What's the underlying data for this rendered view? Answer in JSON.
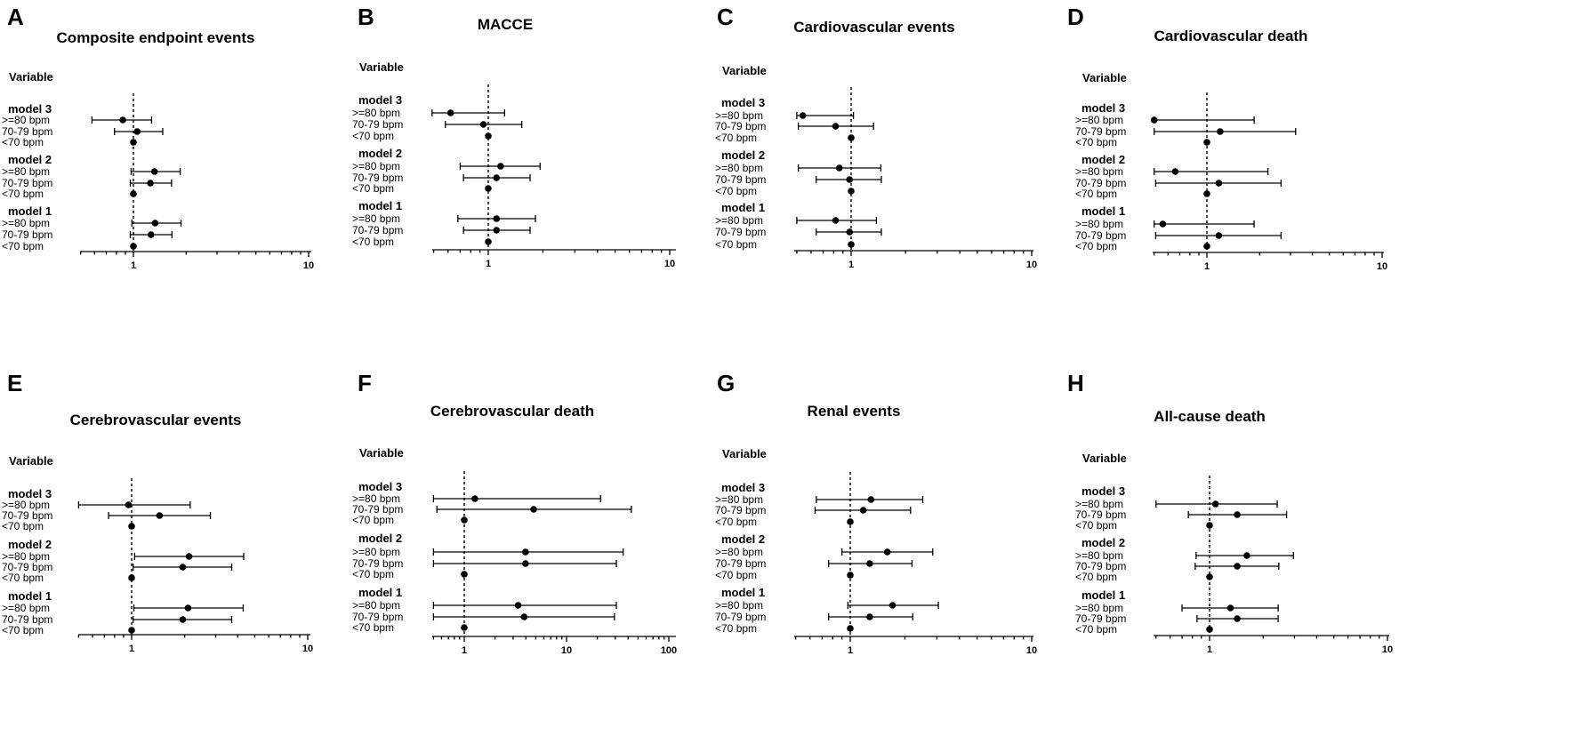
{
  "row_labels": [
    ">=80 bpm",
    "70-79 bpm",
    "<70 bpm"
  ],
  "variable_header": "Variable",
  "chart_data": [
    {
      "type": "forest",
      "letter": "A",
      "title": "Composite endpoint events",
      "x_scale": "log",
      "xlim": [
        0.5,
        10
      ],
      "ticks": [
        {
          "v": 1,
          "label": "1"
        },
        {
          "v": 10,
          "label": "10"
        }
      ],
      "reference": 1,
      "models": [
        {
          "label": "model 3",
          "rows": [
            {
              "est": 0.87,
              "lo": 0.58,
              "hi": 1.27
            },
            {
              "est": 1.05,
              "lo": 0.78,
              "hi": 1.47
            },
            {
              "est": 1.0
            }
          ]
        },
        {
          "label": "model 2",
          "rows": [
            {
              "est": 1.32,
              "lo": 0.97,
              "hi": 1.85
            },
            {
              "est": 1.25,
              "lo": 0.96,
              "hi": 1.65
            },
            {
              "est": 1.0
            }
          ]
        },
        {
          "label": "model 1",
          "rows": [
            {
              "est": 1.33,
              "lo": 0.98,
              "hi": 1.87
            },
            {
              "est": 1.26,
              "lo": 0.96,
              "hi": 1.66
            },
            {
              "est": 1.0
            }
          ]
        }
      ]
    },
    {
      "type": "forest",
      "letter": "B",
      "title": "MACCE",
      "x_scale": "log",
      "xlim": [
        0.5,
        10
      ],
      "ticks": [
        {
          "v": 1,
          "label": "1"
        },
        {
          "v": 10,
          "label": "10"
        }
      ],
      "reference": 1,
      "models": [
        {
          "label": "model 3",
          "rows": [
            {
              "est": 0.62,
              "lo": 0.49,
              "hi": 1.23
            },
            {
              "est": 0.94,
              "lo": 0.58,
              "hi": 1.53
            },
            {
              "est": 1.0
            }
          ]
        },
        {
          "label": "model 2",
          "rows": [
            {
              "est": 1.17,
              "lo": 0.7,
              "hi": 1.93
            },
            {
              "est": 1.11,
              "lo": 0.73,
              "hi": 1.7
            },
            {
              "est": 1.0
            }
          ]
        },
        {
          "label": "model 1",
          "rows": [
            {
              "est": 1.11,
              "lo": 0.68,
              "hi": 1.82
            },
            {
              "est": 1.11,
              "lo": 0.73,
              "hi": 1.7
            },
            {
              "est": 1.0
            }
          ]
        }
      ]
    },
    {
      "type": "forest",
      "letter": "C",
      "title": "Cardiovascular events",
      "x_scale": "log",
      "xlim": [
        0.5,
        10
      ],
      "ticks": [
        {
          "v": 1,
          "label": "1"
        },
        {
          "v": 10,
          "label": "10"
        }
      ],
      "reference": 1,
      "models": [
        {
          "label": "model 3",
          "rows": [
            {
              "est": 0.54,
              "lo": 0.5,
              "hi": 1.03
            },
            {
              "est": 0.82,
              "lo": 0.51,
              "hi": 1.33
            },
            {
              "est": 1.0
            }
          ]
        },
        {
          "label": "model 2",
          "rows": [
            {
              "est": 0.86,
              "lo": 0.51,
              "hi": 1.46
            },
            {
              "est": 0.98,
              "lo": 0.64,
              "hi": 1.47
            },
            {
              "est": 1.0
            }
          ]
        },
        {
          "label": "model 1",
          "rows": [
            {
              "est": 0.82,
              "lo": 0.5,
              "hi": 1.38
            },
            {
              "est": 0.98,
              "lo": 0.64,
              "hi": 1.47
            },
            {
              "est": 1.0
            }
          ]
        }
      ]
    },
    {
      "type": "forest",
      "letter": "D",
      "title": "Cardiovascular death",
      "x_scale": "log",
      "xlim": [
        0.5,
        10
      ],
      "ticks": [
        {
          "v": 1,
          "label": "1"
        },
        {
          "v": 10,
          "label": "10"
        }
      ],
      "reference": 1,
      "models": [
        {
          "label": "model 3",
          "rows": [
            {
              "est": 0.5,
              "lo": 0.5,
              "hi": 1.86
            },
            {
              "est": 1.19,
              "lo": 0.5,
              "hi": 3.21
            },
            {
              "est": 1.0
            }
          ]
        },
        {
          "label": "model 2",
          "rows": [
            {
              "est": 0.66,
              "lo": 0.5,
              "hi": 2.23
            },
            {
              "est": 1.17,
              "lo": 0.51,
              "hi": 2.65
            },
            {
              "est": 1.0
            }
          ]
        },
        {
          "label": "model 1",
          "rows": [
            {
              "est": 0.56,
              "lo": 0.5,
              "hi": 1.86
            },
            {
              "est": 1.17,
              "lo": 0.51,
              "hi": 2.65
            },
            {
              "est": 1.0
            }
          ]
        }
      ]
    },
    {
      "type": "forest",
      "letter": "E",
      "title": "Cerebrovascular events",
      "x_scale": "log",
      "xlim": [
        0.5,
        10
      ],
      "ticks": [
        {
          "v": 1,
          "label": "1"
        },
        {
          "v": 10,
          "label": "10"
        }
      ],
      "reference": 1,
      "models": [
        {
          "label": "model 3",
          "rows": [
            {
              "est": 0.96,
              "lo": 0.5,
              "hi": 2.15
            },
            {
              "est": 1.44,
              "lo": 0.74,
              "hi": 2.8
            },
            {
              "est": 1.0
            }
          ]
        },
        {
          "label": "model 2",
          "rows": [
            {
              "est": 2.12,
              "lo": 1.04,
              "hi": 4.33
            },
            {
              "est": 1.95,
              "lo": 1.02,
              "hi": 3.7
            },
            {
              "est": 1.0
            }
          ]
        },
        {
          "label": "model 1",
          "rows": [
            {
              "est": 2.09,
              "lo": 1.03,
              "hi": 4.3
            },
            {
              "est": 1.95,
              "lo": 1.02,
              "hi": 3.7
            },
            {
              "est": 1.0
            }
          ]
        }
      ]
    },
    {
      "type": "forest",
      "letter": "F",
      "title": "Cerebrovascular death",
      "x_scale": "log",
      "xlim": [
        0.5,
        100
      ],
      "ticks": [
        {
          "v": 1,
          "label": "1"
        },
        {
          "v": 10,
          "label": "10"
        },
        {
          "v": 100,
          "label": "100"
        }
      ],
      "reference": 1,
      "models": [
        {
          "label": "model 3",
          "rows": [
            {
              "est": 1.27,
              "lo": 0.5,
              "hi": 21.5
            },
            {
              "est": 4.77,
              "lo": 0.54,
              "hi": 43.0
            },
            {
              "est": 1.0
            }
          ]
        },
        {
          "label": "model 2",
          "rows": [
            {
              "est": 3.97,
              "lo": 0.5,
              "hi": 35.8
            },
            {
              "est": 3.97,
              "lo": 0.5,
              "hi": 30.7
            },
            {
              "est": 1.0
            }
          ]
        },
        {
          "label": "model 1",
          "rows": [
            {
              "est": 3.36,
              "lo": 0.5,
              "hi": 30.7
            },
            {
              "est": 3.85,
              "lo": 0.5,
              "hi": 29.4
            },
            {
              "est": 1.0
            }
          ]
        }
      ]
    },
    {
      "type": "forest",
      "letter": "G",
      "title": "Renal events",
      "x_scale": "log",
      "xlim": [
        0.5,
        10
      ],
      "ticks": [
        {
          "v": 1,
          "label": "1"
        },
        {
          "v": 10,
          "label": "10"
        }
      ],
      "reference": 1,
      "models": [
        {
          "label": "model 3",
          "rows": [
            {
              "est": 1.3,
              "lo": 0.65,
              "hi": 2.51
            },
            {
              "est": 1.18,
              "lo": 0.64,
              "hi": 2.15
            },
            {
              "est": 1.0
            }
          ]
        },
        {
          "label": "model 2",
          "rows": [
            {
              "est": 1.6,
              "lo": 0.9,
              "hi": 2.85
            },
            {
              "est": 1.28,
              "lo": 0.76,
              "hi": 2.19
            },
            {
              "est": 1.0
            }
          ]
        },
        {
          "label": "model 1",
          "rows": [
            {
              "est": 1.71,
              "lo": 0.97,
              "hi": 3.06
            },
            {
              "est": 1.28,
              "lo": 0.76,
              "hi": 2.21
            },
            {
              "est": 1.0
            }
          ]
        }
      ]
    },
    {
      "type": "forest",
      "letter": "H",
      "title": "All-cause death",
      "x_scale": "log",
      "xlim": [
        0.5,
        10
      ],
      "ticks": [
        {
          "v": 1,
          "label": "1"
        },
        {
          "v": 10,
          "label": "10"
        }
      ],
      "reference": 1,
      "models": [
        {
          "label": "model 3",
          "rows": [
            {
              "est": 1.08,
              "lo": 0.5,
              "hi": 2.4
            },
            {
              "est": 1.43,
              "lo": 0.76,
              "hi": 2.71
            },
            {
              "est": 1.0
            }
          ]
        },
        {
          "label": "model 2",
          "rows": [
            {
              "est": 1.62,
              "lo": 0.84,
              "hi": 2.96
            },
            {
              "est": 1.43,
              "lo": 0.83,
              "hi": 2.45
            },
            {
              "est": 1.0
            }
          ]
        },
        {
          "label": "model 1",
          "rows": [
            {
              "est": 1.31,
              "lo": 0.7,
              "hi": 2.43
            },
            {
              "est": 1.43,
              "lo": 0.85,
              "hi": 2.43
            },
            {
              "est": 1.0
            }
          ]
        }
      ]
    }
  ]
}
